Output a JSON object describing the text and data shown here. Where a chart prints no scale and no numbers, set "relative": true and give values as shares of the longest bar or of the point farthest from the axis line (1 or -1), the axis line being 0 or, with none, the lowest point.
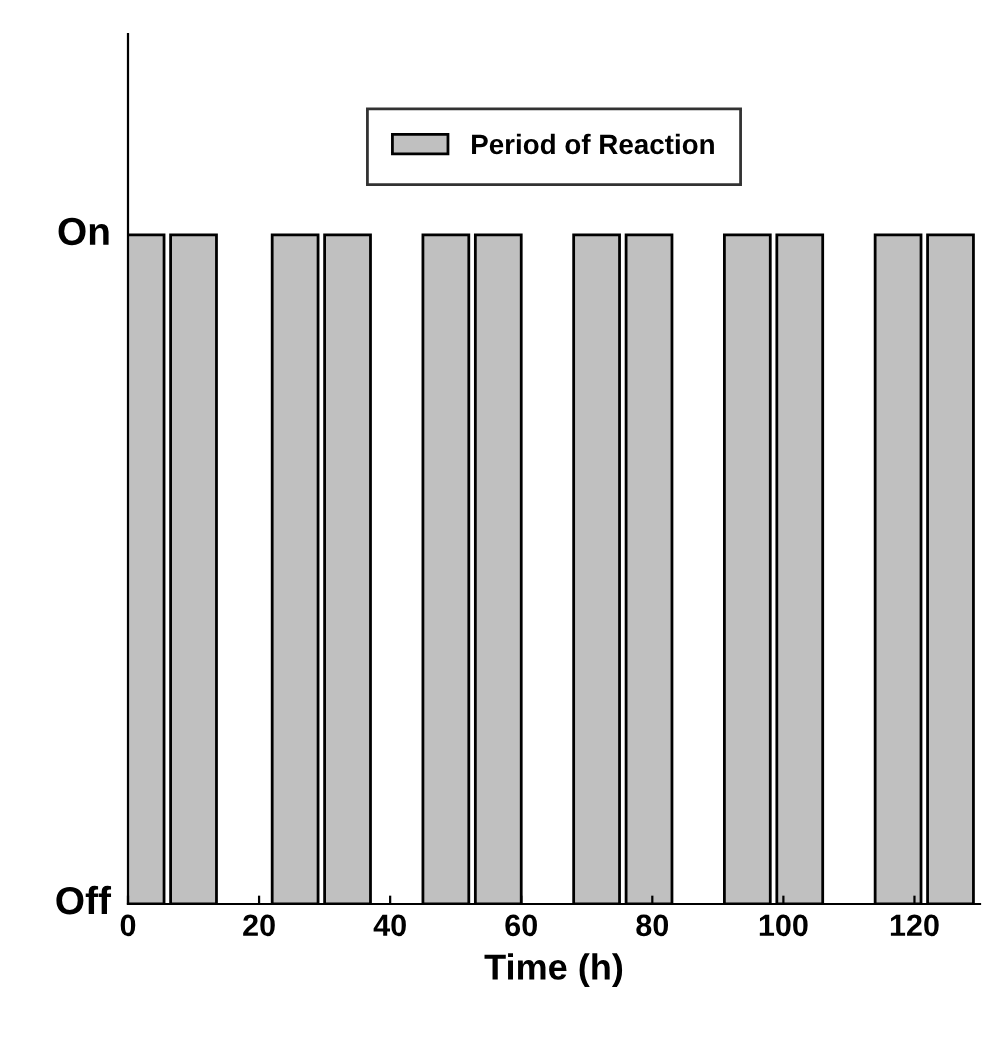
{
  "chart_data": {
    "type": "bar",
    "xlabel": "Time (h)",
    "relative": true,
    "x": [
      2,
      10,
      25.5,
      33.5,
      48.5,
      56.5,
      71.5,
      79.5,
      94.5,
      102.5,
      117.5,
      125.5
    ],
    "series": [
      {
        "name": "Period of Reaction",
        "color": "#c0c0c0",
        "values": [
          1,
          1,
          1,
          1,
          1,
          1,
          1,
          1,
          1,
          1,
          1,
          1
        ]
      }
    ],
    "xlim": [
      0,
      130
    ],
    "xticks": [
      0,
      20,
      40,
      60,
      80,
      100,
      120
    ],
    "annotations": [
      "On",
      "Off"
    ],
    "legend": "top",
    "grid": false
  }
}
